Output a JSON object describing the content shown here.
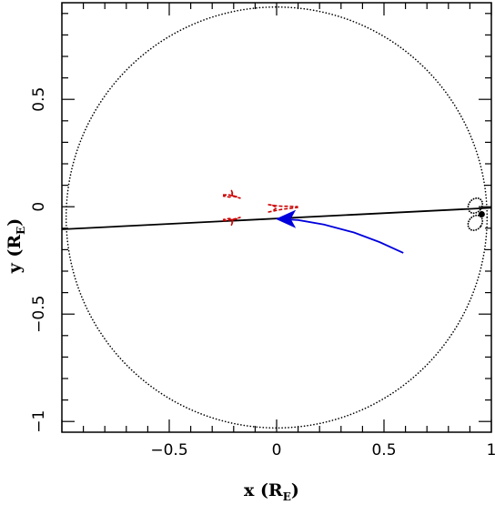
{
  "chart_data": {
    "type": "scatter",
    "title": "",
    "xlabel": {
      "main": "x (R",
      "sub": "E",
      "close": ")"
    },
    "ylabel": {
      "main": "y (R",
      "sub": "E",
      "close": ")"
    },
    "xlim": [
      -1.0,
      1.0
    ],
    "ylim": [
      -1.05,
      0.95
    ],
    "grid": false,
    "legend": "none",
    "x_ticks": [
      {
        "value": -0.5,
        "label": "−0.5"
      },
      {
        "value": 0,
        "label": "0"
      },
      {
        "value": 0.5,
        "label": "0.5"
      },
      {
        "value": 1,
        "label": "1"
      }
    ],
    "y_ticks": [
      {
        "value": 0.5,
        "label": "0.5"
      },
      {
        "value": 0,
        "label": "0"
      },
      {
        "value": -0.5,
        "label": "−0.5"
      },
      {
        "value": -1,
        "label": "−1"
      }
    ],
    "series": [
      {
        "style": "dotted-circle",
        "color": "#000000",
        "center": [
          0.0,
          -0.05
        ],
        "radius": 0.98
      },
      {
        "style": "solid-line",
        "color": "#000000",
        "points": [
          [
            -1.0,
            -0.105
          ],
          [
            1.0,
            -0.005
          ]
        ]
      },
      {
        "style": "trajectory-arrow",
        "color": "#0000dd",
        "points": [
          [
            0.59,
            -0.215
          ],
          [
            0.48,
            -0.165
          ],
          [
            0.36,
            -0.12
          ],
          [
            0.22,
            -0.083
          ],
          [
            0.1,
            -0.062
          ],
          [
            0.03,
            -0.058
          ]
        ],
        "arrow_tip": [
          0.0,
          -0.057
        ]
      },
      {
        "style": "caustic",
        "color": "#cc0000",
        "segments": [
          [
            [
              -0.25,
              0.055
            ],
            [
              -0.22,
              0.055
            ],
            [
              -0.19,
              0.048
            ],
            [
              -0.17,
              0.04
            ],
            [
              -0.2,
              0.048
            ],
            [
              -0.21,
              0.075
            ],
            [
              -0.205,
              0.048
            ],
            [
              -0.22,
              0.045
            ],
            [
              -0.25,
              0.05
            ]
          ],
          [
            [
              -0.25,
              -0.065
            ],
            [
              -0.22,
              -0.062
            ],
            [
              -0.19,
              -0.058
            ],
            [
              -0.17,
              -0.05
            ],
            [
              -0.2,
              -0.058
            ],
            [
              -0.21,
              -0.085
            ],
            [
              -0.205,
              -0.058
            ],
            [
              -0.22,
              -0.055
            ],
            [
              -0.25,
              -0.06
            ]
          ],
          [
            [
              -0.04,
              0.01
            ],
            [
              -0.005,
              0.005
            ],
            [
              0.025,
              0.002
            ],
            [
              0.06,
              0.002
            ],
            [
              0.1,
              0.0
            ]
          ],
          [
            [
              -0.04,
              -0.025
            ],
            [
              -0.005,
              -0.018
            ],
            [
              0.025,
              -0.012
            ],
            [
              0.06,
              -0.008
            ],
            [
              0.1,
              -0.003
            ]
          ],
          [
            [
              -0.02,
              0.008
            ],
            [
              0.0,
              -0.005
            ],
            [
              -0.02,
              -0.02
            ]
          ]
        ]
      },
      {
        "style": "dotted-ovals",
        "color": "#000000",
        "ovals": [
          {
            "center": [
              0.925,
              0.005
            ],
            "rx": 0.03,
            "ry": 0.038,
            "tilt": 40
          },
          {
            "center": [
              0.925,
              -0.075
            ],
            "rx": 0.03,
            "ry": 0.038,
            "tilt": 40
          }
        ],
        "dot": [
          0.955,
          -0.035
        ]
      }
    ]
  }
}
